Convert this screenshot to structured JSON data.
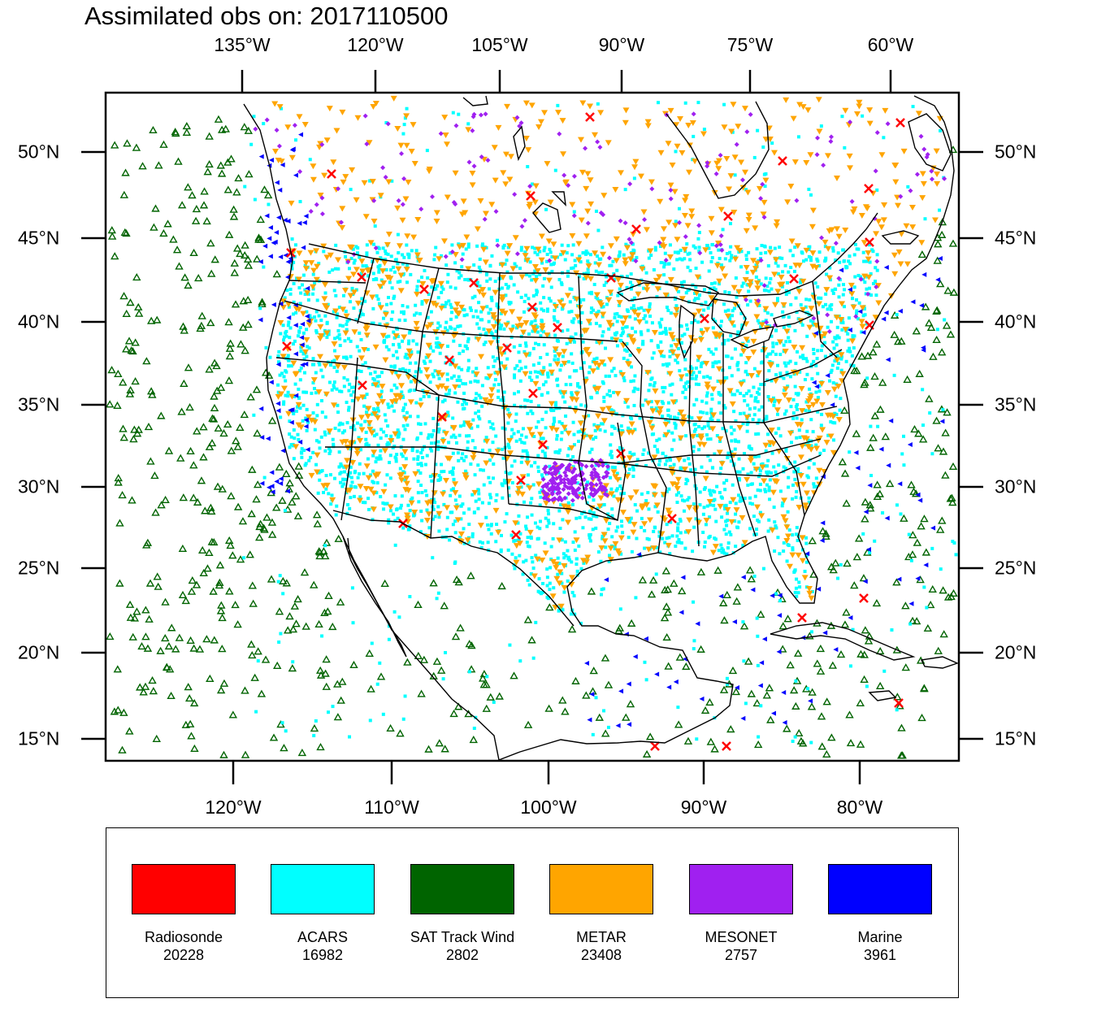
{
  "title": "Assimilated obs on: 2017110500",
  "axes": {
    "top_lon_labels": [
      "135°W",
      "120°W",
      "105°W",
      "90°W",
      "75°W",
      "60°W"
    ],
    "bottom_lon_labels": [
      "120°W",
      "110°W",
      "100°W",
      "90°W",
      "80°W"
    ],
    "left_lat_labels": [
      "50°N",
      "45°N",
      "40°N",
      "35°N",
      "30°N",
      "25°N",
      "20°N",
      "15°N"
    ],
    "right_lat_labels": [
      "50°N",
      "45°N",
      "40°N",
      "35°N",
      "30°N",
      "25°N",
      "20°N",
      "15°N"
    ]
  },
  "legend": [
    {
      "name": "Radiosonde",
      "count": "20228",
      "color": "#ff0000",
      "marker": "x-cross"
    },
    {
      "name": "ACARS",
      "count": "16982",
      "color": "#00ffff",
      "marker": "square-dot"
    },
    {
      "name": "SAT Track Wind",
      "count": "2802",
      "color": "#006400",
      "marker": "triangle-up"
    },
    {
      "name": "METAR",
      "count": "23408",
      "color": "#ffa500",
      "marker": "triangle-down"
    },
    {
      "name": "MESONET",
      "count": "2757",
      "color": "#a020f0",
      "marker": "diamond"
    },
    {
      "name": "Marine",
      "count": "3961",
      "color": "#0000ff",
      "marker": "triangle-left"
    }
  ],
  "colors": {
    "radiosonde": "#ff0000",
    "acars": "#00ffff",
    "sat_track_wind": "#006400",
    "metar": "#ffa500",
    "mesonet": "#a020f0",
    "marine": "#0000ff",
    "coast": "#000000"
  }
}
